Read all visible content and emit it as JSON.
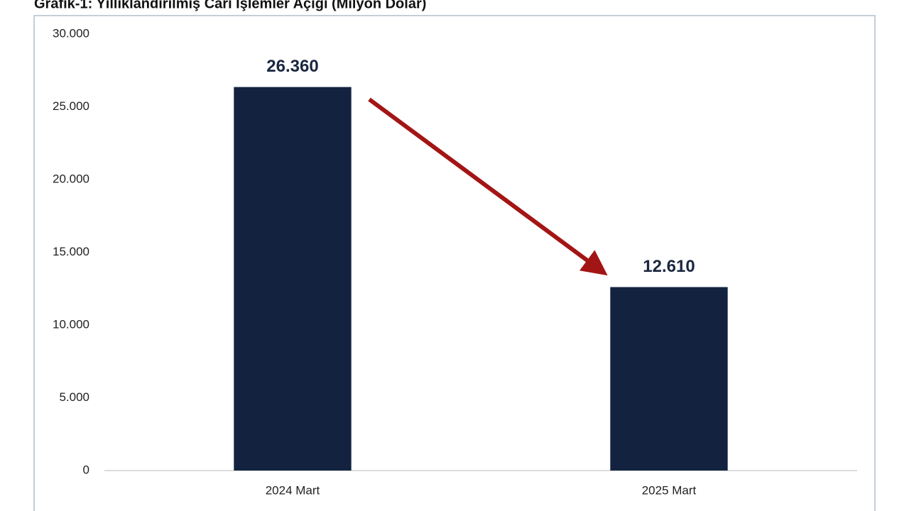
{
  "chart_data": {
    "type": "bar",
    "title": "Grafik-1: Yıllıklandırılmış Cari İşlemler Açığı (Milyon Dolar)",
    "categories": [
      "2024 Mart",
      "2025 Mart"
    ],
    "values": [
      26360,
      12610
    ],
    "value_labels": [
      "26.360",
      "12.610"
    ],
    "color": "#13233f",
    "ylim": [
      0,
      30000
    ],
    "yticks": [
      0,
      {
        "value": 5000,
        "label": "5.000"
      },
      {
        "value": 10000,
        "label": "10.000"
      },
      {
        "value": 15000,
        "label": "15.000"
      },
      {
        "value": 20000,
        "label": "20.000"
      },
      {
        "value": 25000,
        "label": "25.000"
      },
      {
        "value": 30000,
        "label": "30.000"
      }
    ],
    "grid": false
  }
}
